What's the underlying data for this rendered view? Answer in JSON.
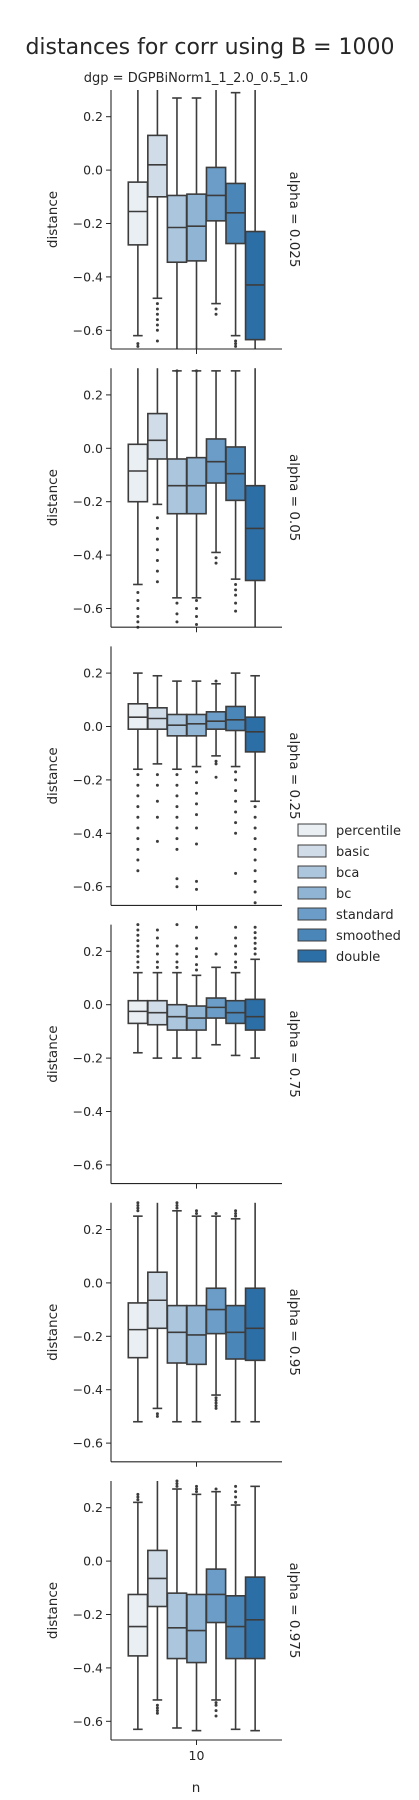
{
  "chart_data": {
    "type": "box",
    "title": "distances for corr using B = 1000",
    "subtitle": "dgp = DGPBiNorm1_1_2.0_0.5_1.0",
    "xlabel": "n",
    "ylabel": "distance",
    "x_category": "10",
    "ylim": [
      -0.67,
      0.3
    ],
    "yticks": [
      0.2,
      0.0,
      -0.2,
      -0.4,
      -0.6
    ],
    "ytick_labels": [
      "0.2",
      "0.0",
      "−0.2",
      "−0.4",
      "−0.6"
    ],
    "legend_position": "right",
    "methods": [
      "percentile",
      "basic",
      "bca",
      "bc",
      "standard",
      "smoothed",
      "double"
    ],
    "colors": [
      "#eaeff4",
      "#d0dde9",
      "#abc6dd",
      "#8fb4d4",
      "#6b9dc8",
      "#4a86b8",
      "#2c6fa7"
    ],
    "panels": [
      {
        "label": "alpha = 0.025",
        "boxes": [
          {
            "q1": -0.28,
            "median": -0.155,
            "q3": -0.045,
            "lo": -0.62,
            "hi": 0.3
          },
          {
            "q1": -0.1,
            "median": 0.02,
            "q3": 0.13,
            "lo": -0.48,
            "hi": 0.3
          },
          {
            "q1": -0.345,
            "median": -0.215,
            "q3": -0.095,
            "lo": -0.67,
            "hi": 0.27
          },
          {
            "q1": -0.34,
            "median": -0.21,
            "q3": -0.09,
            "lo": -0.67,
            "hi": 0.27
          },
          {
            "q1": -0.19,
            "median": -0.095,
            "q3": 0.01,
            "lo": -0.5,
            "hi": 0.3
          },
          {
            "q1": -0.275,
            "median": -0.16,
            "q3": -0.05,
            "lo": -0.62,
            "hi": 0.29
          },
          {
            "q1": -0.635,
            "median": -0.43,
            "q3": -0.23,
            "lo": -0.67,
            "hi": 0.3
          }
        ],
        "outliers": [
          {
            "method": "percentile",
            "values": [
              -0.65,
              -0.66
            ]
          },
          {
            "method": "basic",
            "values": [
              -0.5,
              -0.52,
              -0.54,
              -0.56,
              -0.58,
              -0.6,
              -0.64
            ]
          },
          {
            "method": "standard",
            "values": [
              -0.52,
              -0.54
            ]
          },
          {
            "method": "smoothed",
            "values": [
              -0.64,
              -0.65,
              -0.66
            ]
          }
        ]
      },
      {
        "label": "alpha = 0.05",
        "boxes": [
          {
            "q1": -0.2,
            "median": -0.085,
            "q3": 0.015,
            "lo": -0.51,
            "hi": 0.3
          },
          {
            "q1": -0.04,
            "median": 0.03,
            "q3": 0.13,
            "lo": -0.21,
            "hi": 0.3
          },
          {
            "q1": -0.245,
            "median": -0.14,
            "q3": -0.04,
            "lo": -0.56,
            "hi": 0.29
          },
          {
            "q1": -0.245,
            "median": -0.14,
            "q3": -0.035,
            "lo": -0.56,
            "hi": 0.29
          },
          {
            "q1": -0.13,
            "median": -0.05,
            "q3": 0.035,
            "lo": -0.39,
            "hi": 0.29
          },
          {
            "q1": -0.195,
            "median": -0.095,
            "q3": 0.005,
            "lo": -0.49,
            "hi": 0.29
          },
          {
            "q1": -0.495,
            "median": -0.3,
            "q3": -0.14,
            "lo": -0.67,
            "hi": 0.3
          }
        ],
        "outliers": [
          {
            "method": "percentile",
            "values": [
              -0.54,
              -0.57,
              -0.6,
              -0.63,
              -0.65,
              -0.67
            ]
          },
          {
            "method": "basic",
            "values": [
              -0.26,
              -0.3,
              -0.34,
              -0.38,
              -0.42,
              -0.46,
              -0.5
            ]
          },
          {
            "method": "bca",
            "values": [
              0.29,
              -0.58,
              -0.62,
              -0.65
            ]
          },
          {
            "method": "bc",
            "values": [
              0.29,
              -0.57,
              -0.6,
              -0.63,
              -0.66
            ]
          },
          {
            "method": "standard",
            "values": [
              -0.41,
              -0.43
            ]
          },
          {
            "method": "smoothed",
            "values": [
              -0.51,
              -0.53,
              -0.55,
              -0.58,
              -0.61
            ]
          }
        ]
      },
      {
        "label": "alpha = 0.25",
        "boxes": [
          {
            "q1": -0.01,
            "median": 0.035,
            "q3": 0.085,
            "lo": -0.16,
            "hi": 0.2
          },
          {
            "q1": -0.01,
            "median": 0.03,
            "q3": 0.07,
            "lo": -0.14,
            "hi": 0.19
          },
          {
            "q1": -0.035,
            "median": 0.005,
            "q3": 0.045,
            "lo": -0.16,
            "hi": 0.17
          },
          {
            "q1": -0.035,
            "median": 0.01,
            "q3": 0.045,
            "lo": -0.15,
            "hi": 0.17
          },
          {
            "q1": -0.01,
            "median": 0.02,
            "q3": 0.055,
            "lo": -0.11,
            "hi": 0.16
          },
          {
            "q1": -0.015,
            "median": 0.025,
            "q3": 0.075,
            "lo": -0.15,
            "hi": 0.2
          },
          {
            "q1": -0.095,
            "median": -0.02,
            "q3": 0.035,
            "lo": -0.28,
            "hi": 0.19
          }
        ],
        "outliers": [
          {
            "method": "percentile",
            "values": [
              -0.18,
              -0.22,
              -0.26,
              -0.3,
              -0.34,
              -0.38,
              -0.42,
              -0.46,
              -0.5,
              -0.54
            ]
          },
          {
            "method": "basic",
            "values": [
              -0.18,
              -0.22,
              -0.28,
              -0.34,
              -0.43
            ]
          },
          {
            "method": "bca",
            "values": [
              -0.18,
              -0.22,
              -0.26,
              -0.3,
              -0.34,
              -0.38,
              -0.42,
              -0.46,
              -0.57,
              -0.6
            ]
          },
          {
            "method": "bc",
            "values": [
              -0.17,
              -0.21,
              -0.25,
              -0.29,
              -0.33,
              -0.38,
              -0.44,
              -0.58,
              -0.61
            ]
          },
          {
            "method": "standard",
            "values": [
              0.17,
              -0.13,
              -0.14,
              -0.19
            ]
          },
          {
            "method": "smoothed",
            "values": [
              -0.17,
              -0.2,
              -0.24,
              -0.28,
              -0.32,
              -0.36,
              -0.4,
              -0.55
            ]
          },
          {
            "method": "double",
            "values": [
              -0.3,
              -0.34,
              -0.38,
              -0.42,
              -0.46,
              -0.5,
              -0.54,
              -0.58,
              -0.62,
              -0.66
            ]
          }
        ]
      },
      {
        "label": "alpha = 0.75",
        "boxes": [
          {
            "q1": -0.07,
            "median": -0.025,
            "q3": 0.015,
            "lo": -0.18,
            "hi": 0.12
          },
          {
            "q1": -0.075,
            "median": -0.03,
            "q3": 0.015,
            "lo": -0.2,
            "hi": 0.12
          },
          {
            "q1": -0.095,
            "median": -0.045,
            "q3": 0.0,
            "lo": -0.2,
            "hi": 0.12
          },
          {
            "q1": -0.095,
            "median": -0.05,
            "q3": -0.005,
            "lo": -0.2,
            "hi": 0.11
          },
          {
            "q1": -0.05,
            "median": -0.01,
            "q3": 0.025,
            "lo": -0.15,
            "hi": 0.14
          },
          {
            "q1": -0.07,
            "median": -0.03,
            "q3": 0.015,
            "lo": -0.19,
            "hi": 0.12
          },
          {
            "q1": -0.095,
            "median": -0.045,
            "q3": 0.02,
            "lo": -0.2,
            "hi": 0.17
          }
        ],
        "outliers": [
          {
            "method": "percentile",
            "values": [
              0.14,
              0.16,
              0.18,
              0.2,
              0.22,
              0.24,
              0.26,
              0.28,
              0.3
            ]
          },
          {
            "method": "basic",
            "values": [
              0.14,
              0.16,
              0.19,
              0.22,
              0.25,
              0.28
            ]
          },
          {
            "method": "bca",
            "values": [
              0.14,
              0.16,
              0.19,
              0.22,
              0.3
            ]
          },
          {
            "method": "bc",
            "values": [
              0.13,
              0.15,
              0.18,
              0.21,
              0.25,
              0.29
            ]
          },
          {
            "method": "standard",
            "values": [
              0.19
            ]
          },
          {
            "method": "smoothed",
            "values": [
              0.14,
              0.16,
              0.19,
              0.22,
              0.25,
              0.29
            ]
          },
          {
            "method": "double",
            "values": [
              0.19,
              0.21,
              0.23,
              0.25,
              0.27,
              0.29
            ]
          }
        ]
      },
      {
        "label": "alpha = 0.95",
        "boxes": [
          {
            "q1": -0.28,
            "median": -0.175,
            "q3": -0.075,
            "lo": -0.52,
            "hi": 0.25
          },
          {
            "q1": -0.17,
            "median": -0.065,
            "q3": 0.04,
            "lo": -0.47,
            "hi": 0.3
          },
          {
            "q1": -0.3,
            "median": -0.185,
            "q3": -0.085,
            "lo": -0.52,
            "hi": 0.27
          },
          {
            "q1": -0.305,
            "median": -0.195,
            "q3": -0.085,
            "lo": -0.52,
            "hi": 0.25
          },
          {
            "q1": -0.19,
            "median": -0.1,
            "q3": -0.02,
            "lo": -0.42,
            "hi": 0.25
          },
          {
            "q1": -0.285,
            "median": -0.185,
            "q3": -0.085,
            "lo": -0.52,
            "hi": 0.24
          },
          {
            "q1": -0.29,
            "median": -0.17,
            "q3": -0.02,
            "lo": -0.52,
            "hi": 0.3
          }
        ],
        "outliers": [
          {
            "method": "percentile",
            "values": [
              0.27,
              0.28,
              0.29,
              0.3
            ]
          },
          {
            "method": "basic",
            "values": [
              -0.49,
              -0.5
            ]
          },
          {
            "method": "bca",
            "values": [
              0.28,
              0.29,
              0.3
            ]
          },
          {
            "method": "bc",
            "values": [
              0.26,
              0.27
            ]
          },
          {
            "method": "standard",
            "values": [
              0.26,
              -0.43,
              -0.44,
              -0.45,
              -0.46,
              -0.47
            ]
          },
          {
            "method": "smoothed",
            "values": [
              0.25,
              0.26,
              0.27
            ]
          }
        ]
      },
      {
        "label": "alpha = 0.975",
        "boxes": [
          {
            "q1": -0.355,
            "median": -0.245,
            "q3": -0.125,
            "lo": -0.63,
            "hi": 0.22
          },
          {
            "q1": -0.17,
            "median": -0.065,
            "q3": 0.04,
            "lo": -0.52,
            "hi": 0.3
          },
          {
            "q1": -0.365,
            "median": -0.25,
            "q3": -0.12,
            "lo": -0.625,
            "hi": 0.27
          },
          {
            "q1": -0.38,
            "median": -0.26,
            "q3": -0.125,
            "lo": -0.635,
            "hi": 0.25
          },
          {
            "q1": -0.23,
            "median": -0.125,
            "q3": -0.03,
            "lo": -0.52,
            "hi": 0.26
          },
          {
            "q1": -0.365,
            "median": -0.245,
            "q3": -0.13,
            "lo": -0.63,
            "hi": 0.21
          },
          {
            "q1": -0.365,
            "median": -0.22,
            "q3": -0.06,
            "lo": -0.635,
            "hi": 0.28
          }
        ],
        "outliers": [
          {
            "method": "percentile",
            "values": [
              0.23,
              0.24,
              0.25
            ]
          },
          {
            "method": "basic",
            "values": [
              -0.54,
              -0.55,
              -0.56,
              -0.57
            ]
          },
          {
            "method": "bca",
            "values": [
              0.28,
              0.29,
              0.3
            ]
          },
          {
            "method": "bc",
            "values": [
              0.26,
              0.27,
              0.28
            ]
          },
          {
            "method": "standard",
            "values": [
              0.27,
              -0.53,
              -0.54,
              -0.56,
              -0.58
            ]
          },
          {
            "method": "smoothed",
            "values": [
              0.22,
              0.24,
              0.26,
              0.28
            ]
          }
        ]
      }
    ]
  }
}
